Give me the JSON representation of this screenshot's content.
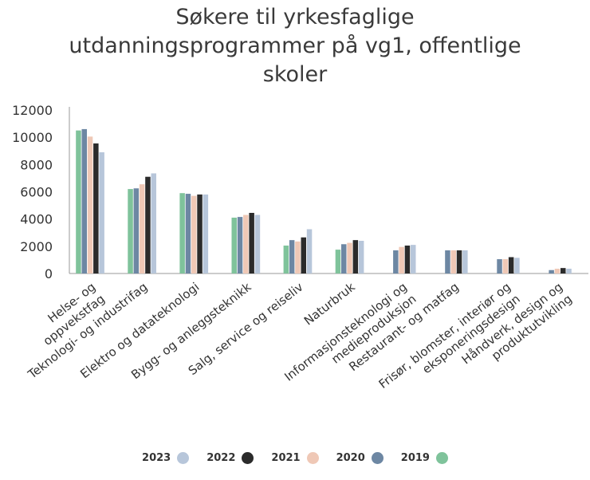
{
  "chart_data": {
    "type": "bar",
    "title_lines": [
      "Søkere til yrkesfaglige",
      "utdanningsprogrammer på vg1, offentlige",
      "skoler"
    ],
    "ylim": [
      0,
      12000
    ],
    "yticks": [
      0,
      2000,
      4000,
      6000,
      8000,
      10000,
      12000
    ],
    "ytick_labels": [
      "0",
      "2000",
      "4000",
      "6000",
      "8000",
      "10000",
      "12000"
    ],
    "categories": [
      "Helse- og\noppvekstfag",
      "Teknologi- og industrifag",
      "Elektro og datateknologi",
      "Bygg- og anleggsteknikk",
      "Salg, service og reiseliv",
      "Naturbruk",
      "Informasjonsteknologi og\nmedieproduksjon",
      "Restaurant- og matfag",
      "Frisør, blomster, interiør og\neksponeringsdesign",
      "Håndverk, design og\nproduktutvikling"
    ],
    "series": [
      {
        "name": "2019",
        "color": "#7fc39b",
        "values": [
          10500,
          6200,
          5900,
          4100,
          2050,
          1750,
          null,
          null,
          null,
          null
        ]
      },
      {
        "name": "2020",
        "color": "#6d87a3",
        "values": [
          10600,
          6250,
          5850,
          4150,
          2450,
          2150,
          1700,
          1700,
          1050,
          250
        ]
      },
      {
        "name": "2021",
        "color": "#efc8b6",
        "values": [
          10050,
          6550,
          5700,
          4300,
          2350,
          2250,
          1950,
          1700,
          1050,
          350
        ]
      },
      {
        "name": "2022",
        "color": "#2b2b2b",
        "values": [
          9550,
          7100,
          5800,
          4450,
          2650,
          2450,
          2050,
          1700,
          1200,
          400
        ]
      },
      {
        "name": "2023",
        "color": "#b7c6da",
        "values": [
          8900,
          7350,
          5800,
          4300,
          3250,
          2400,
          2100,
          1700,
          1150,
          350
        ]
      }
    ],
    "legend_order": [
      "2023",
      "2022",
      "2021",
      "2020",
      "2019"
    ],
    "legend_position": "bottom",
    "grid": false
  }
}
